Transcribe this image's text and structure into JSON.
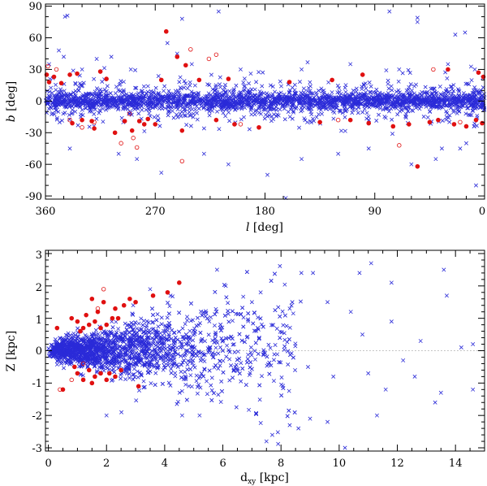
{
  "colors": {
    "blue_cross": "#2b2bd8",
    "red": "#e01010",
    "axis": "#000000",
    "dotted": "#9a9a9a"
  },
  "chart_data": [
    {
      "type": "scatter",
      "title": "",
      "xlabel": "l [deg]",
      "xlabel_symbol": "l",
      "xlabel_unit": "[deg]",
      "ylabel": "b [deg]",
      "ylabel_symbol": "b",
      "ylabel_unit": "[deg]",
      "xlim": [
        360,
        0
      ],
      "ylim": [
        -93,
        92
      ],
      "x_ticks": [
        360,
        270,
        180,
        90,
        0
      ],
      "x_tick_labels": [
        "360",
        "270",
        "180",
        "90",
        "0"
      ],
      "y_ticks": [
        90,
        60,
        30,
        0,
        -30,
        -60,
        -90
      ],
      "y_tick_labels": [
        "90",
        "60",
        "30",
        "0",
        "-30",
        "-60",
        "-90"
      ],
      "grid": false,
      "series": [
        {
          "marker": "cross",
          "color": "#2b2bd8",
          "points": [
            [
              344,
              80
            ],
            [
              342,
              81
            ],
            [
              248,
              78
            ],
            [
              218,
              85
            ],
            [
              55,
              79
            ],
            [
              55,
              75
            ],
            [
              78,
              85
            ],
            [
              16,
              65
            ],
            [
              24,
              63
            ],
            [
              349,
              48
            ],
            [
              345,
              42
            ],
            [
              318,
              40
            ],
            [
              306,
              42
            ],
            [
              260,
              55
            ],
            [
              252,
              45
            ],
            [
              340,
              -45
            ],
            [
              300,
              -50
            ],
            [
              285,
              -55
            ],
            [
              265,
              -68
            ],
            [
              230,
              -50
            ],
            [
              210,
              -60
            ],
            [
              178,
              -70
            ],
            [
              163,
              -92
            ],
            [
              150,
              -55
            ],
            [
              120,
              -50
            ],
            [
              95,
              -45
            ],
            [
              60,
              -60
            ],
            [
              40,
              -55
            ],
            [
              35,
              -45
            ],
            [
              20,
              -45
            ],
            [
              7,
              -80
            ],
            [
              15,
              -40
            ],
            [
              357,
              35
            ],
            [
              330,
              30
            ],
            [
              290,
              30
            ],
            [
              240,
              35
            ],
            [
              200,
              30
            ],
            [
              150,
              30
            ],
            [
              110,
              35
            ],
            [
              70,
              30
            ],
            [
              30,
              35
            ],
            [
              8,
              30
            ]
          ]
        },
        {
          "marker": "filled-circle",
          "color": "#e01010",
          "points": [
            [
              359,
              25
            ],
            [
              357,
              18
            ],
            [
              353,
              23
            ],
            [
              347,
              17
            ],
            [
              340,
              25
            ],
            [
              338,
              -21
            ],
            [
              334,
              26
            ],
            [
              330,
              -18
            ],
            [
              322,
              -19
            ],
            [
              320,
              -26
            ],
            [
              315,
              28
            ],
            [
              310,
              21
            ],
            [
              303,
              -30
            ],
            [
              295,
              -19
            ],
            [
              289,
              -28
            ],
            [
              283,
              -19
            ],
            [
              279,
              -22
            ],
            [
              276,
              -17
            ],
            [
              270,
              -22
            ],
            [
              265,
              20
            ],
            [
              261,
              66
            ],
            [
              252,
              42
            ],
            [
              248,
              -28
            ],
            [
              245,
              34
            ],
            [
              234,
              20
            ],
            [
              220,
              -18
            ],
            [
              210,
              21
            ],
            [
              205,
              -22
            ],
            [
              185,
              -25
            ],
            [
              160,
              18
            ],
            [
              135,
              -20
            ],
            [
              125,
              20
            ],
            [
              110,
              -18
            ],
            [
              100,
              25
            ],
            [
              95,
              -21
            ],
            [
              75,
              -24
            ],
            [
              62,
              -22
            ],
            [
              55,
              -62
            ],
            [
              45,
              -20
            ],
            [
              38,
              -18
            ],
            [
              30,
              30
            ],
            [
              25,
              -22
            ],
            [
              15,
              -24
            ],
            [
              7,
              -18
            ],
            [
              5,
              27
            ],
            [
              2,
              -21
            ],
            [
              1,
              23
            ]
          ]
        },
        {
          "marker": "open-circle",
          "color": "#e01010",
          "points": [
            [
              358,
              33
            ],
            [
              351,
              30
            ],
            [
              340,
              -18
            ],
            [
              330,
              -25
            ],
            [
              320,
              -20
            ],
            [
              298,
              -40
            ],
            [
              291,
              -12
            ],
            [
              288,
              -35
            ],
            [
              285,
              -44
            ],
            [
              248,
              -57
            ],
            [
              241,
              49
            ],
            [
              226,
              40
            ],
            [
              220,
              44
            ],
            [
              200,
              -22
            ],
            [
              120,
              -18
            ],
            [
              70,
              -42
            ],
            [
              42,
              30
            ],
            [
              20,
              -20
            ]
          ]
        }
      ]
    },
    {
      "type": "scatter",
      "title": "",
      "xlabel": "dxy [kpc]",
      "xlabel_symbol": "d",
      "xlabel_sub": "xy",
      "xlabel_unit": "[kpc]",
      "ylabel": "Z [kpc]",
      "xlim": [
        -0.1,
        15.0
      ],
      "ylim": [
        -3.1,
        3.1
      ],
      "x_ticks": [
        0,
        2,
        4,
        6,
        8,
        10,
        12,
        14
      ],
      "x_tick_labels": [
        "0",
        "2",
        "4",
        "6",
        "8",
        "10",
        "12",
        "14"
      ],
      "y_ticks": [
        3,
        2,
        1,
        0,
        -1,
        -2,
        -3
      ],
      "y_tick_labels": [
        "3",
        "2",
        "1",
        "0",
        "-1",
        "-2",
        "-3"
      ],
      "reference_line_y": 0,
      "grid": false,
      "series": [
        {
          "marker": "cross",
          "color": "#2b2bd8",
          "points": [
            [
              5.8,
              2.5
            ],
            [
              6.1,
              2.0
            ],
            [
              7.3,
              1.8
            ],
            [
              8.7,
              2.4
            ],
            [
              9.1,
              2.4
            ],
            [
              10.7,
              2.4
            ],
            [
              11.1,
              2.7
            ],
            [
              11.8,
              2.1
            ],
            [
              13.6,
              2.5
            ],
            [
              13.7,
              1.7
            ],
            [
              14.6,
              0.2
            ],
            [
              12.2,
              -0.3
            ],
            [
              12.6,
              -0.8
            ],
            [
              13.5,
              -1.3
            ],
            [
              14.6,
              -1.2
            ],
            [
              13.3,
              -1.6
            ],
            [
              11.6,
              -1.2
            ],
            [
              11.3,
              -2.0
            ],
            [
              9.6,
              -2.2
            ],
            [
              9.0,
              -2.1
            ],
            [
              8.6,
              -2.4
            ],
            [
              8.3,
              -2.3
            ],
            [
              7.7,
              -2.6
            ],
            [
              7.5,
              -2.8
            ],
            [
              5.2,
              -2.0
            ],
            [
              4.6,
              -2.0
            ],
            [
              10.2,
              -3.0
            ],
            [
              2.0,
              -2.0
            ],
            [
              3.5,
              1.9
            ],
            [
              4.2,
              1.7
            ],
            [
              9.6,
              1.5
            ],
            [
              10.4,
              1.2
            ],
            [
              11.8,
              0.9
            ],
            [
              12.8,
              0.3
            ],
            [
              14.2,
              0.1
            ],
            [
              10.8,
              0.5
            ],
            [
              9.8,
              -0.8
            ],
            [
              11.0,
              -0.7
            ],
            [
              8.3,
              1.3
            ],
            [
              7.0,
              1.5
            ]
          ]
        },
        {
          "marker": "filled-circle",
          "color": "#e01010",
          "points": [
            [
              0.3,
              0.7
            ],
            [
              0.5,
              -1.2
            ],
            [
              0.8,
              1.0
            ],
            [
              1.0,
              0.9
            ],
            [
              1.1,
              0.6
            ],
            [
              1.2,
              0.7
            ],
            [
              1.3,
              1.1
            ],
            [
              1.4,
              0.8
            ],
            [
              1.5,
              1.6
            ],
            [
              1.6,
              0.9
            ],
            [
              1.7,
              1.2
            ],
            [
              1.8,
              0.7
            ],
            [
              1.9,
              1.5
            ],
            [
              2.0,
              0.8
            ],
            [
              2.2,
              1.0
            ],
            [
              2.4,
              1.0
            ],
            [
              2.6,
              1.4
            ],
            [
              2.8,
              1.6
            ],
            [
              3.0,
              1.5
            ],
            [
              3.6,
              1.7
            ],
            [
              4.1,
              1.8
            ],
            [
              4.5,
              2.1
            ],
            [
              2.3,
              1.3
            ],
            [
              1.0,
              -0.7
            ],
            [
              1.2,
              -0.9
            ],
            [
              1.4,
              -0.6
            ],
            [
              1.6,
              -0.8
            ],
            [
              1.8,
              -0.7
            ],
            [
              2.0,
              -0.9
            ],
            [
              2.1,
              -0.7
            ],
            [
              2.3,
              -0.8
            ],
            [
              2.5,
              -0.6
            ],
            [
              1.5,
              -1.0
            ],
            [
              0.9,
              -0.5
            ],
            [
              3.1,
              -1.1
            ]
          ]
        },
        {
          "marker": "open-circle",
          "color": "#e01010",
          "points": [
            [
              1.9,
              1.9
            ],
            [
              0.4,
              -1.2
            ],
            [
              0.8,
              -0.9
            ],
            [
              1.2,
              -0.4
            ],
            [
              1.7,
              1.3
            ]
          ]
        }
      ]
    }
  ]
}
